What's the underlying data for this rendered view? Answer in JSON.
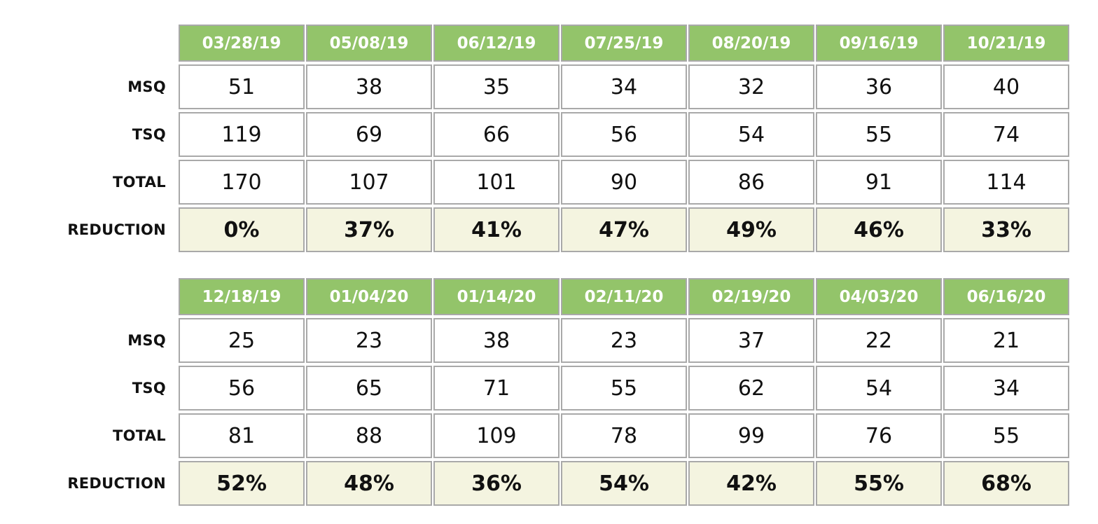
{
  "chart_data": [
    {
      "type": "table",
      "columns": [
        "03/28/19",
        "05/08/19",
        "06/12/19",
        "07/25/19",
        "08/20/19",
        "09/16/19",
        "10/21/19"
      ],
      "rows": [
        {
          "label": "MSQ",
          "values": [
            "51",
            "38",
            "35",
            "34",
            "32",
            "36",
            "40"
          ]
        },
        {
          "label": "TSQ",
          "values": [
            "119",
            "69",
            "66",
            "56",
            "54",
            "55",
            "74"
          ]
        },
        {
          "label": "TOTAL",
          "values": [
            "170",
            "107",
            "101",
            "90",
            "86",
            "91",
            "114"
          ]
        },
        {
          "label": "REDUCTION",
          "values": [
            "0%",
            "37%",
            "41%",
            "47%",
            "49%",
            "46%",
            "33%"
          ]
        }
      ]
    },
    {
      "type": "table",
      "columns": [
        "12/18/19",
        "01/04/20",
        "01/14/20",
        "02/11/20",
        "02/19/20",
        "04/03/20",
        "06/16/20"
      ],
      "rows": [
        {
          "label": "MSQ",
          "values": [
            "25",
            "23",
            "38",
            "23",
            "37",
            "22",
            "21"
          ]
        },
        {
          "label": "TSQ",
          "values": [
            "56",
            "65",
            "71",
            "55",
            "62",
            "54",
            "34"
          ]
        },
        {
          "label": "TOTAL",
          "values": [
            "81",
            "88",
            "109",
            "78",
            "99",
            "76",
            "55"
          ]
        },
        {
          "label": "REDUCTION",
          "values": [
            "52%",
            "48%",
            "36%",
            "54%",
            "42%",
            "55%",
            "68%"
          ]
        }
      ]
    }
  ],
  "colors": {
    "header_bg": "#93c46a",
    "header_text": "#ffffff",
    "reduction_bg": "#f4f4e0",
    "border": "#a9a9a9"
  }
}
